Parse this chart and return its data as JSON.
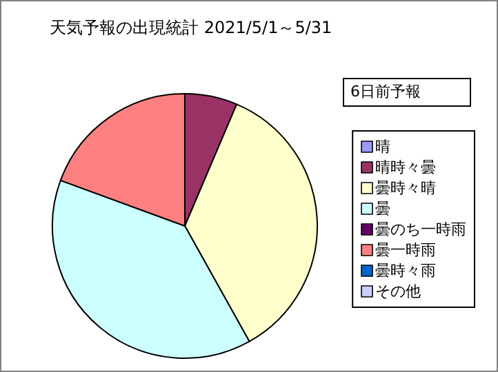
{
  "chart_data": {
    "type": "pie",
    "title": "天気予報の出現統計 2021/5/1～5/31",
    "subtitle": "6日前予報",
    "categories": [
      "晴",
      "晴時々曇",
      "曇時々晴",
      "曇",
      "曇のち一時雨",
      "曇一時雨",
      "曇時々雨",
      "その他"
    ],
    "values": [
      0,
      6.4,
      35.5,
      38.7,
      0,
      19.4,
      0,
      0
    ],
    "colors": [
      "#9999ff",
      "#993366",
      "#ffffcc",
      "#ccffff",
      "#660066",
      "#ff8080",
      "#0066cc",
      "#ccccff"
    ],
    "legend": "right"
  }
}
